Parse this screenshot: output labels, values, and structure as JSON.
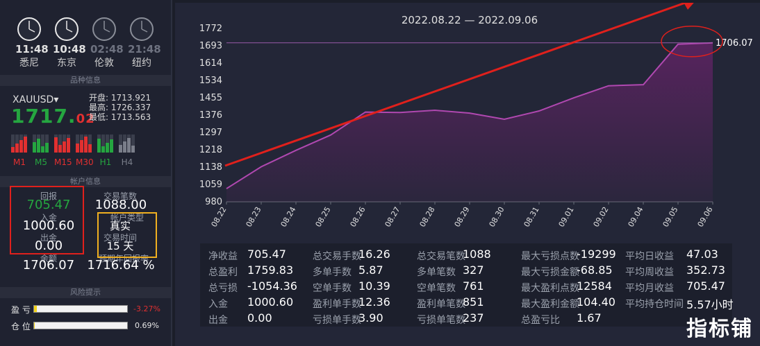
{
  "clocks": [
    {
      "time": "11:48",
      "city": "悉尼",
      "active": true
    },
    {
      "time": "10:48",
      "city": "东京",
      "active": true
    },
    {
      "time": "02:48",
      "city": "伦敦",
      "active": false
    },
    {
      "time": "21:48",
      "city": "纽约",
      "active": false
    }
  ],
  "section_titles": {
    "symbol": "品种信息",
    "account": "帐户信息",
    "risk": "风险提示"
  },
  "symbol": {
    "name": "XAUUSD",
    "price_main": "1717.",
    "price_frac": "02",
    "open_label": "开盘:",
    "open": "1713.921",
    "high_label": "最高:",
    "high": "1726.337",
    "low_label": "最低:",
    "low": "1713.563"
  },
  "timeframes": [
    {
      "label": "M1",
      "color": "#e23030"
    },
    {
      "label": "M5",
      "color": "#25a640"
    },
    {
      "label": "M15",
      "color": "#e23030"
    },
    {
      "label": "M30",
      "color": "#e23030"
    },
    {
      "label": "H1",
      "color": "#25a640"
    },
    {
      "label": "H4",
      "color": "#7a7e8a"
    }
  ],
  "account": {
    "return_label": "回报",
    "return_value": "705.47",
    "trades_label": "交易笔数",
    "trades_value": "1088.00",
    "deposit_label": "入金",
    "deposit_value": "1000.60",
    "acct_type_label": "帐户类型",
    "acct_type_value": "真实",
    "withdraw_label": "出金",
    "withdraw_value": "0.00",
    "time_label": "交易时间",
    "time_value": "15 天",
    "balance_label": "余额",
    "balance_value": "1706.07",
    "annual_label": "预期年回报率",
    "annual_value": "1716.64 %"
  },
  "risk": {
    "pnl_label": "盈  亏",
    "pnl_value": "-3.27%",
    "pnl_fraction": 0.0327,
    "position_label": "仓  位",
    "position_value": "0.69%",
    "position_fraction": 0.0069
  },
  "chart_data": {
    "type": "area",
    "title": "2022.08.22 — 2022.09.06",
    "x": [
      "08.22",
      "08.23",
      "08.24",
      "08.25",
      "08.26",
      "08.27",
      "08.28",
      "08.29",
      "08.30",
      "08.31",
      "09.01",
      "09.02",
      "09.04",
      "09.05",
      "09.06"
    ],
    "values": [
      1040,
      1140,
      1215,
      1285,
      1390,
      1388,
      1398,
      1385,
      1357,
      1395,
      1455,
      1510,
      1515,
      1700,
      1706.07
    ],
    "yticks": [
      980,
      1059,
      1138,
      1218,
      1297,
      1376,
      1455,
      1534,
      1614,
      1693,
      1772
    ],
    "ylim": [
      980,
      1772
    ],
    "last_label": "1706.07",
    "line_color": "#b048b0",
    "fill_color": "#5a2460"
  },
  "stats": [
    [
      {
        "k": "净收益",
        "v": "705.47"
      },
      {
        "k": "总盈利",
        "v": "1759.83"
      },
      {
        "k": "总亏损",
        "v": "-1054.36"
      },
      {
        "k": "入金",
        "v": "1000.60"
      },
      {
        "k": "出金",
        "v": "0.00"
      }
    ],
    [
      {
        "k": "总交易手数",
        "v": "16.26"
      },
      {
        "k": "多单手数",
        "v": "5.87"
      },
      {
        "k": "空单手数",
        "v": "10.39"
      },
      {
        "k": "盈利单手数",
        "v": "12.36"
      },
      {
        "k": "亏损单手数",
        "v": "3.90"
      }
    ],
    [
      {
        "k": "总交易笔数",
        "v": "1088"
      },
      {
        "k": "多单笔数",
        "v": "327"
      },
      {
        "k": "空单笔数",
        "v": "761"
      },
      {
        "k": "盈利单笔数",
        "v": "851"
      },
      {
        "k": "亏损单笔数",
        "v": "237"
      }
    ],
    [
      {
        "k": "最大亏损点数",
        "v": "-19299"
      },
      {
        "k": "最大亏损金额",
        "v": "-68.85"
      },
      {
        "k": "最大盈利点数",
        "v": "12584"
      },
      {
        "k": "最大盈利金额",
        "v": "104.40"
      },
      {
        "k": "总盈亏比",
        "v": "1.67"
      }
    ],
    [
      {
        "k": "平均日收益",
        "v": "47.03"
      },
      {
        "k": "平均周收益",
        "v": "352.73"
      },
      {
        "k": "平均月收益",
        "v": "705.47"
      },
      {
        "k": "平均持仓时间",
        "v": "5.57小时"
      }
    ]
  ],
  "watermark": "指标铺"
}
